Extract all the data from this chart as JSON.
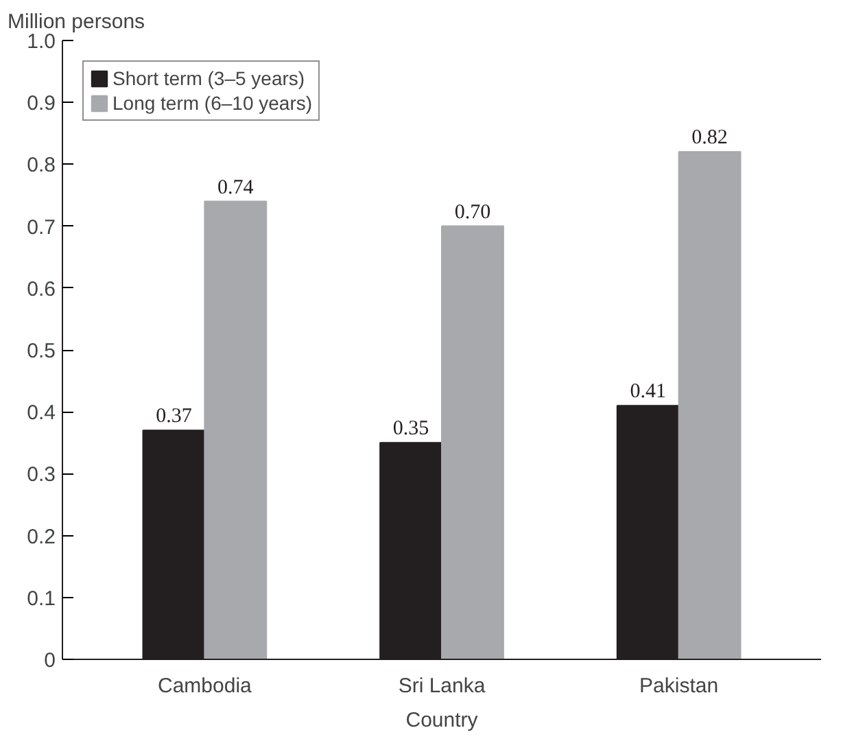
{
  "chart_data": {
    "type": "bar",
    "ylabel": "Million persons",
    "xlabel": "Country",
    "categories": [
      "Cambodia",
      "Sri Lanka",
      "Pakistan"
    ],
    "series": [
      {
        "name": "Short term (3–5 years)",
        "color": "#231f20",
        "values": [
          0.37,
          0.35,
          0.41
        ],
        "value_labels": [
          "0.37",
          "0.35",
          "0.41"
        ]
      },
      {
        "name": "Long term (6–10 years)",
        "color": "#a7a9ac",
        "values": [
          0.74,
          0.7,
          0.82
        ],
        "value_labels": [
          "0.74",
          "0.70",
          "0.82"
        ]
      }
    ],
    "ylim": [
      0,
      1.0
    ],
    "yticks": [
      0,
      0.1,
      0.2,
      0.3,
      0.4,
      0.5,
      0.6,
      0.7,
      0.8,
      0.9,
      {
        "value": 1.0,
        "label": "1.0"
      }
    ],
    "grid": false,
    "legend": "top left"
  }
}
